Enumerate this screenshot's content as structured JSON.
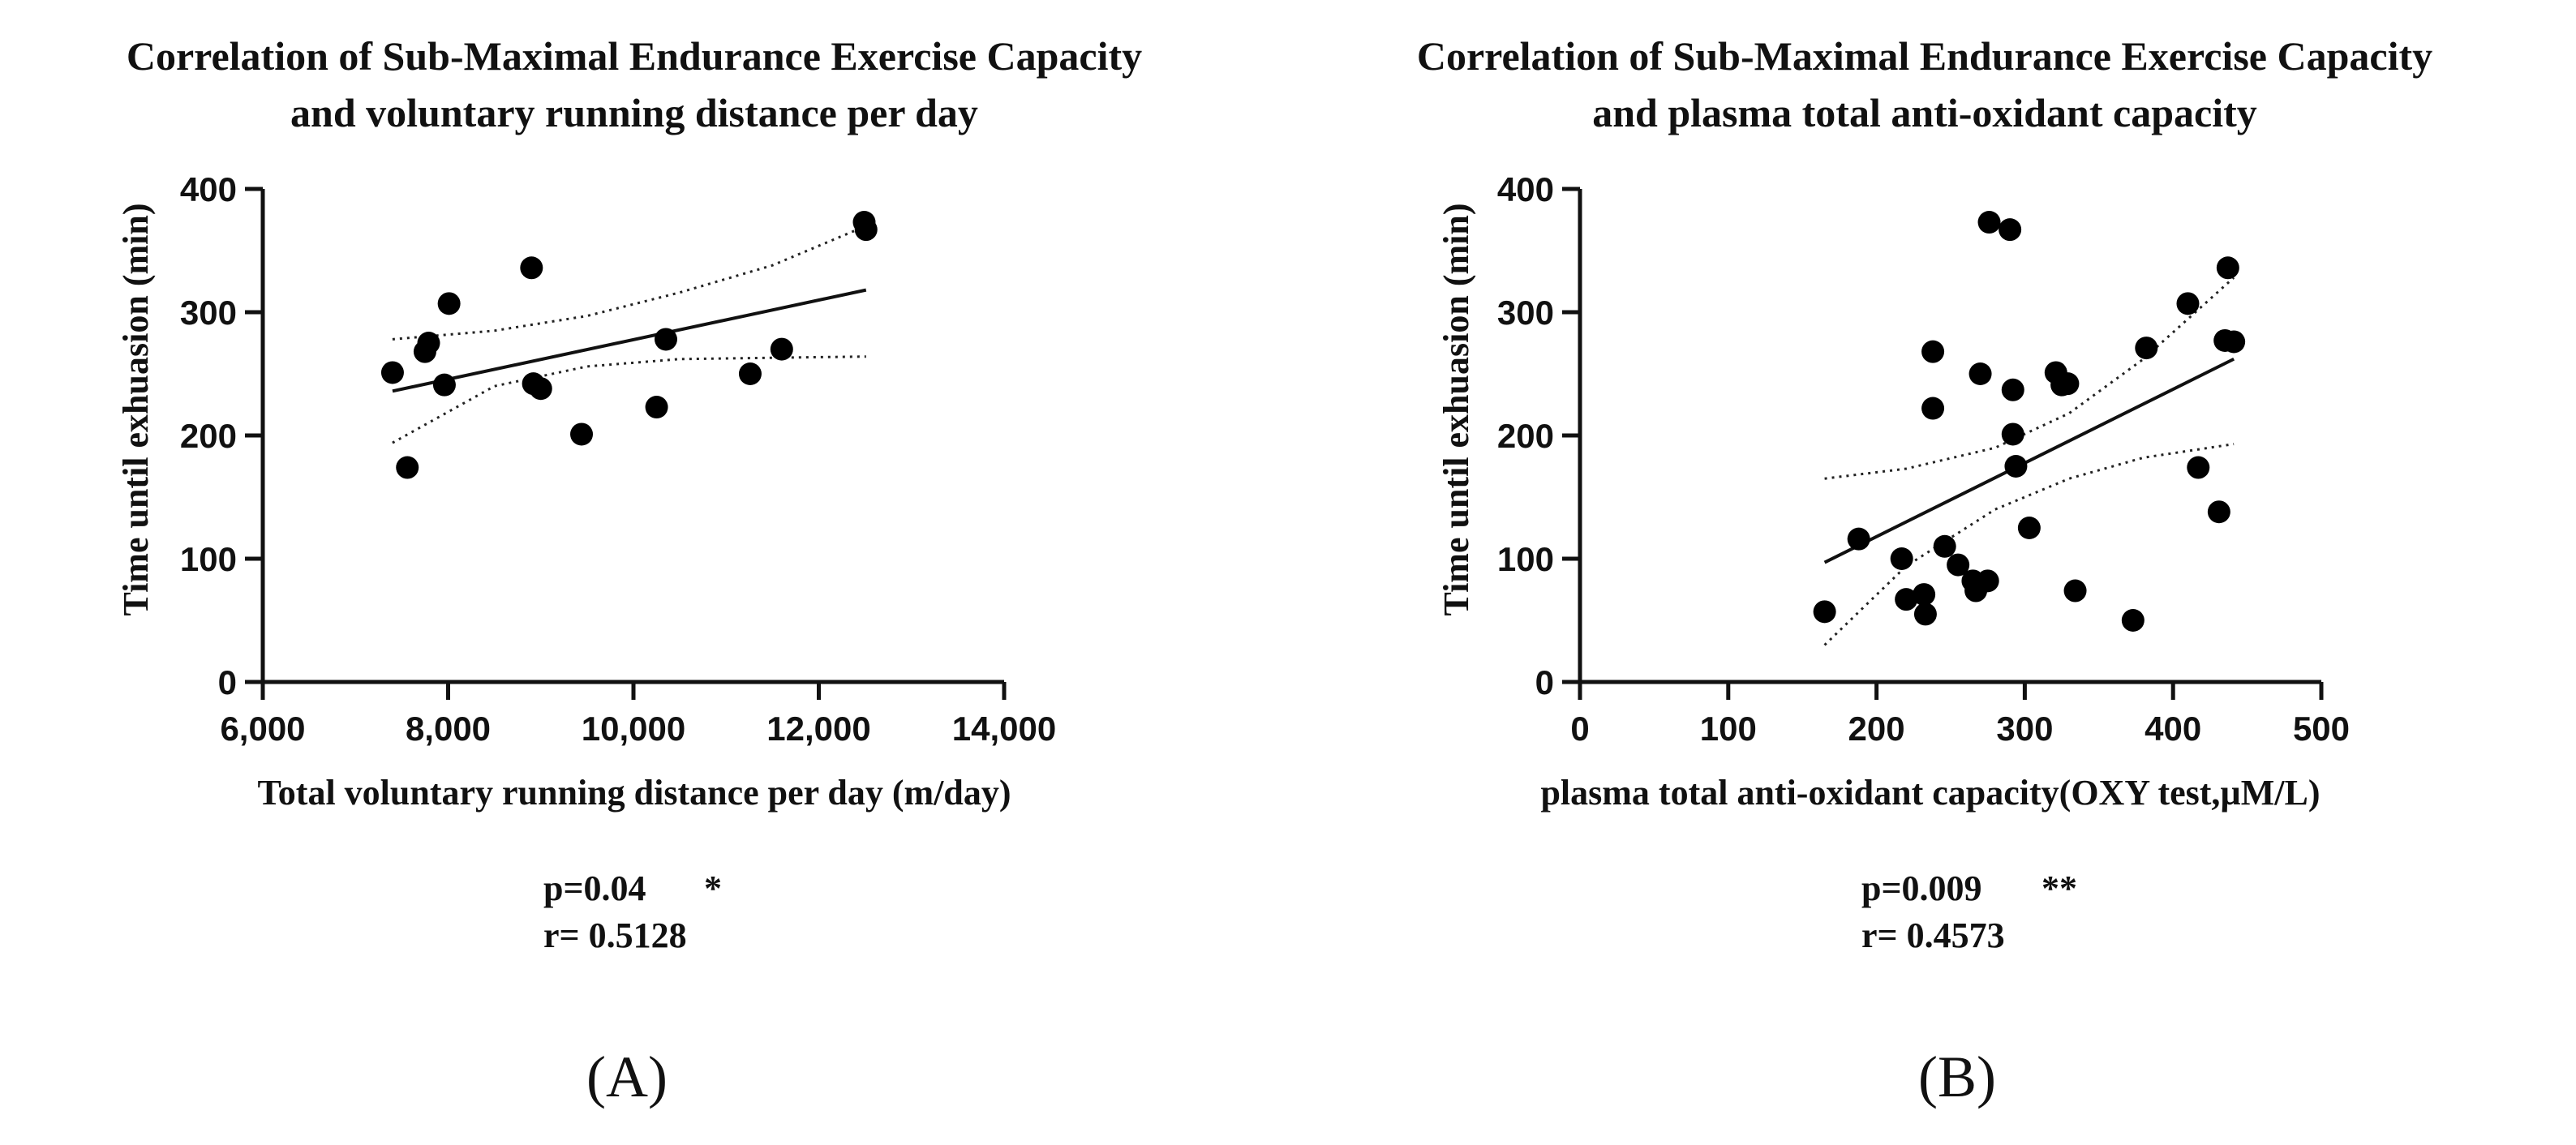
{
  "chart_data": [
    {
      "type": "scatter",
      "panel_label": "(A)",
      "title_line1": "Correlation of  Sub-Maximal Endurance Exercise Capacity",
      "title_line2": "and voluntary running distance per day",
      "xlabel": "Total voluntary running distance per day (m/day)",
      "ylabel": "Time until exhuasion (min)",
      "xlim": [
        6000,
        14000
      ],
      "ylim": [
        0,
        400
      ],
      "xticks": [
        "6,000",
        "8,000",
        "10,000",
        "12,000",
        "14,000"
      ],
      "yticks": [
        "0",
        "100",
        "200",
        "300",
        "400"
      ],
      "x": [
        7400,
        7560,
        7750,
        7790,
        7960,
        8010,
        8900,
        8920,
        9000,
        9440,
        10250,
        10350,
        11260,
        11600,
        12490,
        12510
      ],
      "y": [
        251,
        174,
        268,
        275,
        241,
        307,
        336,
        242,
        238,
        201,
        223,
        278,
        250,
        270,
        373,
        367
      ],
      "fit": {
        "x": [
          7400,
          12510
        ],
        "y": [
          236,
          318
        ]
      },
      "ci_upper": {
        "x": [
          7400,
          8500,
          9500,
          10500,
          11500,
          12510
        ],
        "y": [
          278,
          285,
          297,
          316,
          338,
          370
        ]
      },
      "ci_lower": {
        "x": [
          7400,
          8500,
          9500,
          10500,
          11500,
          12510
        ],
        "y": [
          194,
          240,
          256,
          262,
          263,
          264
        ]
      },
      "p_text": "p=0.04",
      "p_sig": "*",
      "r_text": "r= 0.5128"
    },
    {
      "type": "scatter",
      "panel_label": "(B)",
      "title_line1": "Correlation of  Sub-Maximal Endurance Exercise Capacity",
      "title_line2": "and plasma total anti-oxidant capacity",
      "xlabel": "plasma total anti-oxidant capacity(OXY test,µM/L)",
      "ylabel": "Time until exhuasion (min)",
      "xlim": [
        0,
        500
      ],
      "ylim": [
        0,
        400
      ],
      "xticks": [
        "0",
        "100",
        "200",
        "300",
        "400",
        "500"
      ],
      "yticks": [
        "0",
        "100",
        "200",
        "300",
        "400"
      ],
      "x": [
        165,
        188,
        217,
        220,
        232,
        233,
        238,
        238,
        246,
        255,
        265,
        267,
        270,
        275,
        276,
        290,
        292,
        292,
        294,
        303,
        321,
        325,
        329,
        334,
        373,
        382,
        410,
        417,
        431,
        435,
        437,
        441
      ],
      "y": [
        57,
        116,
        100,
        67,
        71,
        55,
        268,
        222,
        110,
        95,
        82,
        74,
        250,
        82,
        373,
        367,
        237,
        201,
        175,
        125,
        251,
        241,
        242,
        74,
        50,
        271,
        307,
        174,
        138,
        277,
        336,
        276
      ],
      "fit": {
        "x": [
          165,
          441
        ],
        "y": [
          97,
          262
        ]
      },
      "ci_upper": {
        "x": [
          165,
          220,
          280,
          330,
          380,
          441
        ],
        "y": [
          165,
          173,
          190,
          218,
          262,
          328
        ]
      },
      "ci_lower": {
        "x": [
          165,
          220,
          280,
          330,
          380,
          441
        ],
        "y": [
          30,
          94,
          140,
          165,
          182,
          193
        ]
      },
      "p_text": "p=0.009",
      "p_sig": "**",
      "r_text": "r= 0.4573"
    }
  ]
}
